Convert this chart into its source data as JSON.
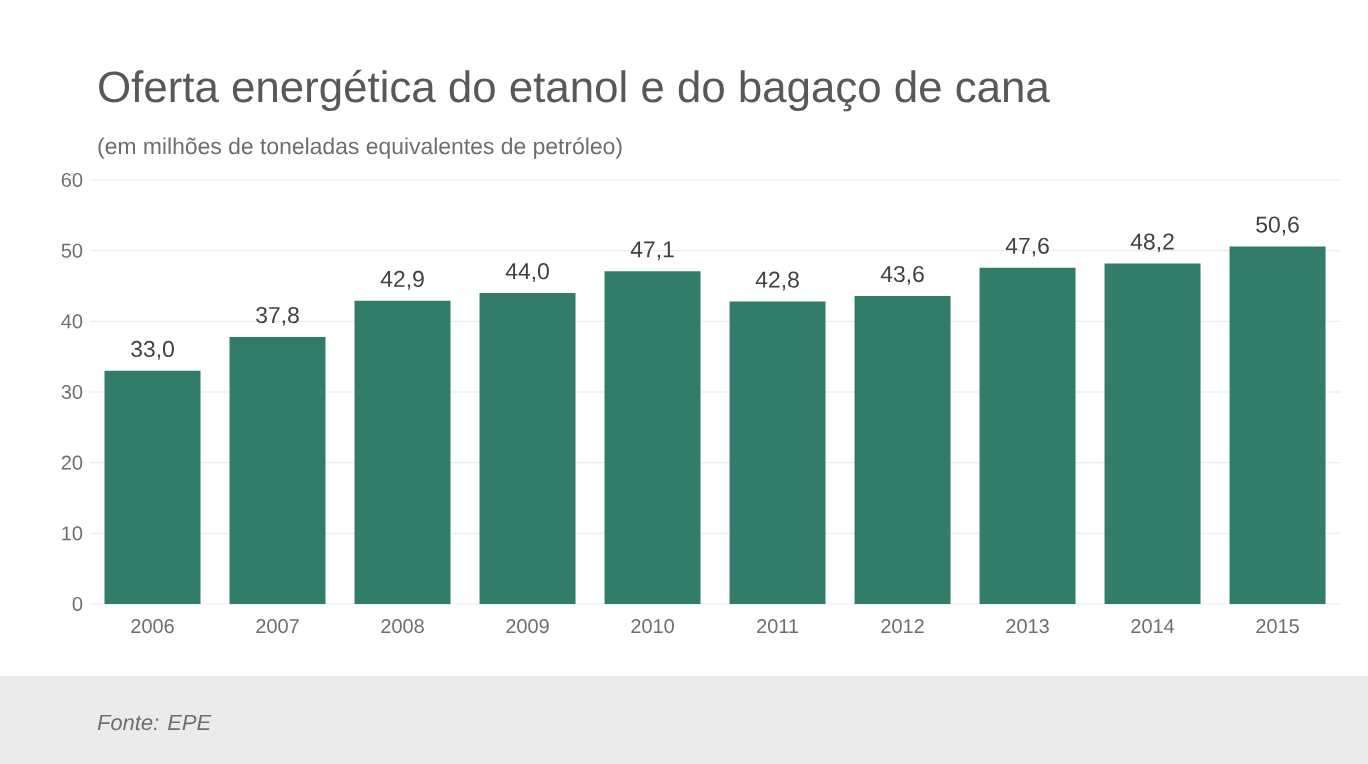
{
  "chart_data": {
    "type": "bar",
    "title": "Oferta energética do etanol e do bagaço de cana",
    "subtitle": "(em milhões de toneladas equivalentes de petróleo)",
    "categories": [
      "2006",
      "2007",
      "2008",
      "2009",
      "2010",
      "2011",
      "2012",
      "2013",
      "2014",
      "2015"
    ],
    "values": [
      33.0,
      37.8,
      42.9,
      44.0,
      47.1,
      42.8,
      43.6,
      47.6,
      48.2,
      50.6
    ],
    "value_labels": [
      "33,0",
      "37,8",
      "42,9",
      "44,0",
      "47,1",
      "42,8",
      "43,6",
      "47,6",
      "48,2",
      "50,6"
    ],
    "color": "#327d6a",
    "ylim": [
      0,
      60
    ],
    "yticks": [
      0,
      10,
      20,
      30,
      40,
      50,
      60
    ],
    "grid": "y",
    "annotations": [
      "Fonte: EPE"
    ]
  }
}
